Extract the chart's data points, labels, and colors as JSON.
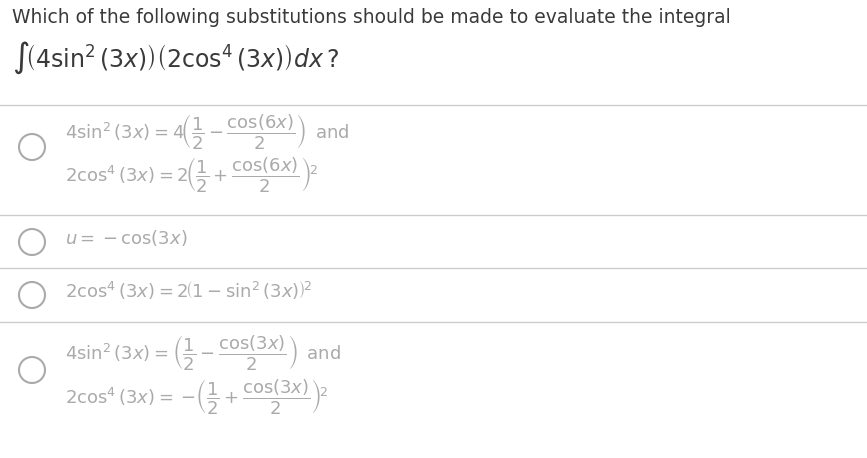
{
  "background_color": "#ffffff",
  "title_color": "#3a3a3a",
  "option_color": "#aaaaaa",
  "circle_color": "#aaaaaa",
  "divider_color": "#cccccc",
  "title_line1": "Which of the following substitutions should be made to evaluate the integral",
  "title_line2": "$\\int\\!\\left(4\\sin^2(3x)\\right)\\left(2\\cos^4(3x)\\right)dx\\,?$",
  "opt1_line1": "$4\\sin^2(3x) = 4\\!\\left(\\dfrac{1}{2} - \\dfrac{\\cos(6x)}{2}\\right)\\,$ and",
  "opt1_line2": "$2\\cos^4(3x) = 2\\!\\left(\\dfrac{1}{2} + \\dfrac{\\cos(6x)}{2}\\right)^{\\!2}$",
  "opt2": "$u = -\\cos(3x)$",
  "opt3": "$2\\cos^4(3x) = 2\\!\\left(1 - \\sin^2(3x)\\right)^{\\!2}$",
  "opt4_line1": "$4\\sin^2(3x) = \\left(\\dfrac{1}{2} - \\dfrac{\\cos(3x)}{2}\\right)\\,$ and",
  "opt4_line2": "$2\\cos^4(3x) = -\\!\\left(\\dfrac{1}{2} + \\dfrac{\\cos(3x)}{2}\\right)^{\\!2}$",
  "fig_width": 8.67,
  "fig_height": 4.58,
  "dpi": 100
}
